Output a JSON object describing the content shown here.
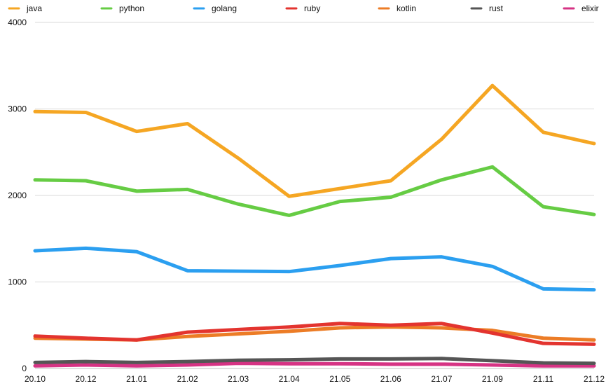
{
  "chart_data": {
    "type": "line",
    "title": "",
    "xlabel": "",
    "ylabel": "",
    "ylim": [
      0,
      4000
    ],
    "y_ticks": [
      0,
      1000,
      2000,
      3000,
      4000
    ],
    "grid": true,
    "legend_position": "top",
    "categories": [
      "20.10",
      "20.12",
      "21.01",
      "21.02",
      "21.03",
      "21.04",
      "21.05",
      "21.06",
      "21.07",
      "21.09",
      "21.11",
      "21.12"
    ],
    "series": [
      {
        "name": "java",
        "color": "#f5a623",
        "values": [
          2970,
          2960,
          2740,
          2830,
          2430,
          1990,
          2080,
          2170,
          2650,
          3270,
          2730,
          2600
        ]
      },
      {
        "name": "python",
        "color": "#66cc44",
        "values": [
          2180,
          2170,
          2050,
          2070,
          1900,
          1770,
          1930,
          1980,
          2180,
          2330,
          1870,
          1780
        ]
      },
      {
        "name": "golang",
        "color": "#2b9ff0",
        "values": [
          1360,
          1390,
          1350,
          1130,
          1125,
          1120,
          1190,
          1270,
          1290,
          1180,
          920,
          910
        ]
      },
      {
        "name": "ruby",
        "color": "#e3342f",
        "values": [
          375,
          350,
          330,
          420,
          450,
          480,
          520,
          500,
          520,
          410,
          290,
          280
        ]
      },
      {
        "name": "kotlin",
        "color": "#ec7c26",
        "values": [
          350,
          340,
          330,
          370,
          400,
          430,
          470,
          480,
          470,
          440,
          350,
          330
        ]
      },
      {
        "name": "rust",
        "color": "#555555",
        "values": [
          70,
          80,
          70,
          80,
          95,
          100,
          110,
          110,
          115,
          90,
          65,
          60
        ]
      },
      {
        "name": "elixir",
        "color": "#d63384",
        "values": [
          30,
          40,
          30,
          40,
          60,
          55,
          55,
          50,
          50,
          40,
          30,
          30
        ]
      }
    ]
  }
}
